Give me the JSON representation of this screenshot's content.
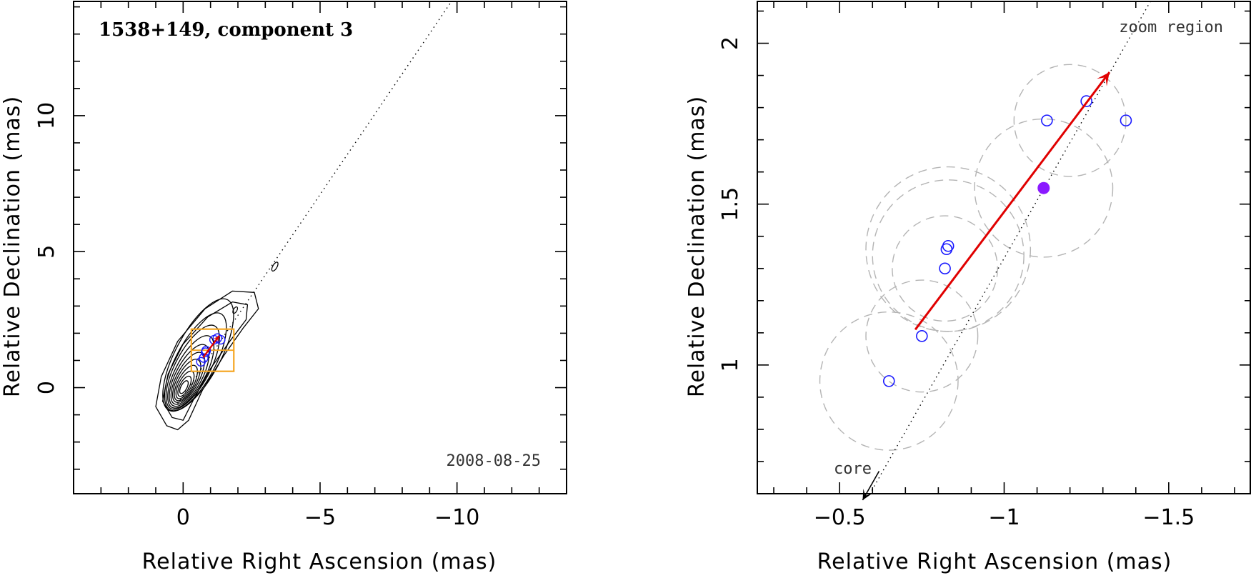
{
  "chart_data": [
    {
      "type": "scatter",
      "panel": "left",
      "title": "1538+149, component 3",
      "date": "2008-08-25",
      "xlabel": "Relative Right Ascension (mas)",
      "ylabel": "Relative Declination (mas)",
      "xlim": [
        4,
        -14
      ],
      "ylim": [
        -3.9,
        14.2
      ],
      "xticks": [
        0,
        -5,
        -10
      ],
      "xtick_labels": [
        "0",
        "−5",
        "−10"
      ],
      "yticks": [
        0,
        5,
        10
      ],
      "ytick_labels": [
        "0",
        "5",
        "10"
      ],
      "colors": {
        "contour": "#000000",
        "zoom_box": "#f5a623",
        "arrow": "#e00000",
        "points": "#1a1aff"
      },
      "components": [
        {
          "x": -0.65,
          "y": 0.95
        },
        {
          "x": -0.75,
          "y": 1.09
        },
        {
          "x": -0.82,
          "y": 1.3
        },
        {
          "x": -0.84,
          "y": 1.36
        },
        {
          "x": -1.13,
          "y": 1.76
        },
        {
          "x": -1.25,
          "y": 1.82
        },
        {
          "x": -1.37,
          "y": 1.76
        }
      ],
      "zoom_box": {
        "x": [
          -0.3,
          -1.85
        ],
        "y": [
          0.6,
          2.15
        ]
      },
      "arrow": {
        "from": [
          -0.73,
          1.11
        ],
        "to": [
          -1.32,
          1.91
        ]
      }
    },
    {
      "type": "scatter",
      "panel": "right",
      "label_zoom": "zoom region",
      "label_core": "core",
      "xlabel": "Relative Right Ascension (mas)",
      "ylabel": "Relative Declination (mas)",
      "xlim": [
        -0.25,
        -1.75
      ],
      "ylim": [
        0.6,
        2.13
      ],
      "xticks": [
        -0.5,
        -1,
        -1.5
      ],
      "xtick_labels": [
        "−0.5",
        "−1",
        "−1.5"
      ],
      "yticks": [
        1,
        1.5,
        2
      ],
      "ytick_labels": [
        "1",
        "1.5",
        "2"
      ],
      "colors": {
        "points": "#1a1aff",
        "filled_point": "#8b1aff",
        "arrow": "#e00000",
        "circles": "#b4b4b4",
        "core_arrow": "#000000"
      },
      "components": [
        {
          "x": -0.65,
          "y": 0.95
        },
        {
          "x": -0.75,
          "y": 1.09
        },
        {
          "x": -0.82,
          "y": 1.3
        },
        {
          "x": -0.825,
          "y": 1.36
        },
        {
          "x": -0.83,
          "y": 1.37
        },
        {
          "x": -1.13,
          "y": 1.76
        },
        {
          "x": -1.25,
          "y": 1.82
        },
        {
          "x": -1.37,
          "y": 1.76
        }
      ],
      "mean_position": {
        "x": -1.12,
        "y": 1.55
      },
      "uncertainty_circles": [
        {
          "x": -0.65,
          "y": 0.95,
          "r": 0.21
        },
        {
          "x": -0.75,
          "y": 1.09,
          "r": 0.17
        },
        {
          "x": -0.82,
          "y": 1.3,
          "r": 0.16
        },
        {
          "x": -0.83,
          "y": 1.34,
          "r": 0.23
        },
        {
          "x": -0.83,
          "y": 1.36,
          "r": 0.25
        },
        {
          "x": -1.12,
          "y": 1.55,
          "r": 0.21
        },
        {
          "x": -1.2,
          "y": 1.76,
          "r": 0.17
        }
      ],
      "arrow": {
        "from": [
          -0.73,
          1.11
        ],
        "to": [
          -1.32,
          1.91
        ]
      },
      "trajectory": {
        "from": [
          -0.57,
          0.56
        ],
        "to": [
          -1.45,
          2.14
        ]
      },
      "core_arrow": {
        "from": [
          -0.62,
          0.67
        ],
        "to": [
          -0.57,
          0.58
        ]
      }
    }
  ]
}
